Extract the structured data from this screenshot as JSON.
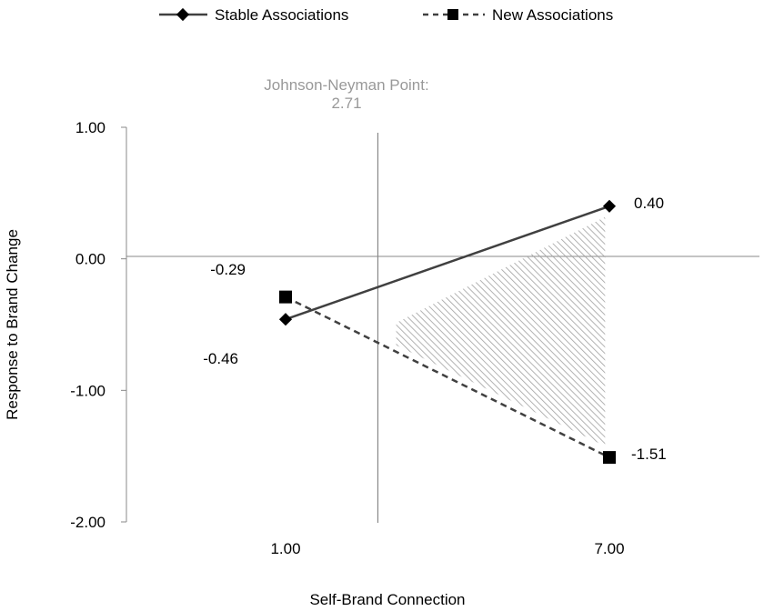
{
  "chart_data": {
    "type": "line",
    "title": "",
    "xlabel": "Self-Brand Connection",
    "ylabel": "Response to Brand Change",
    "categories": [
      "1.00",
      "7.00"
    ],
    "x": [
      1,
      7
    ],
    "xlim": [
      0,
      8
    ],
    "ylim": [
      -2,
      1
    ],
    "yticks": [
      1,
      0,
      -1,
      -2
    ],
    "ytick_labels": [
      "1.00",
      "0.00",
      "-1.00",
      "-2.00"
    ],
    "grid": false,
    "legend_position": "top",
    "series": [
      {
        "name": "Stable Associations",
        "values": [
          -0.46,
          0.4
        ],
        "value_labels": [
          "-0.46",
          "0.40"
        ],
        "marker": "diamond",
        "line_style": "solid",
        "color": "#404040"
      },
      {
        "name": "New Associations",
        "values": [
          -0.29,
          -1.51
        ],
        "value_labels": [
          "-0.29",
          "-1.51"
        ],
        "marker": "square",
        "line_style": "dashed",
        "color": "#404040"
      }
    ],
    "annotation": {
      "line1": "Johnson-Neyman Point:",
      "line2": "2.71",
      "x_value": 2.71,
      "color": "#999999"
    },
    "shaded_region": {
      "x_from": 2.71,
      "x_to": 7,
      "pattern": "diagonal-hatch",
      "color": "#aaaaaa"
    }
  }
}
